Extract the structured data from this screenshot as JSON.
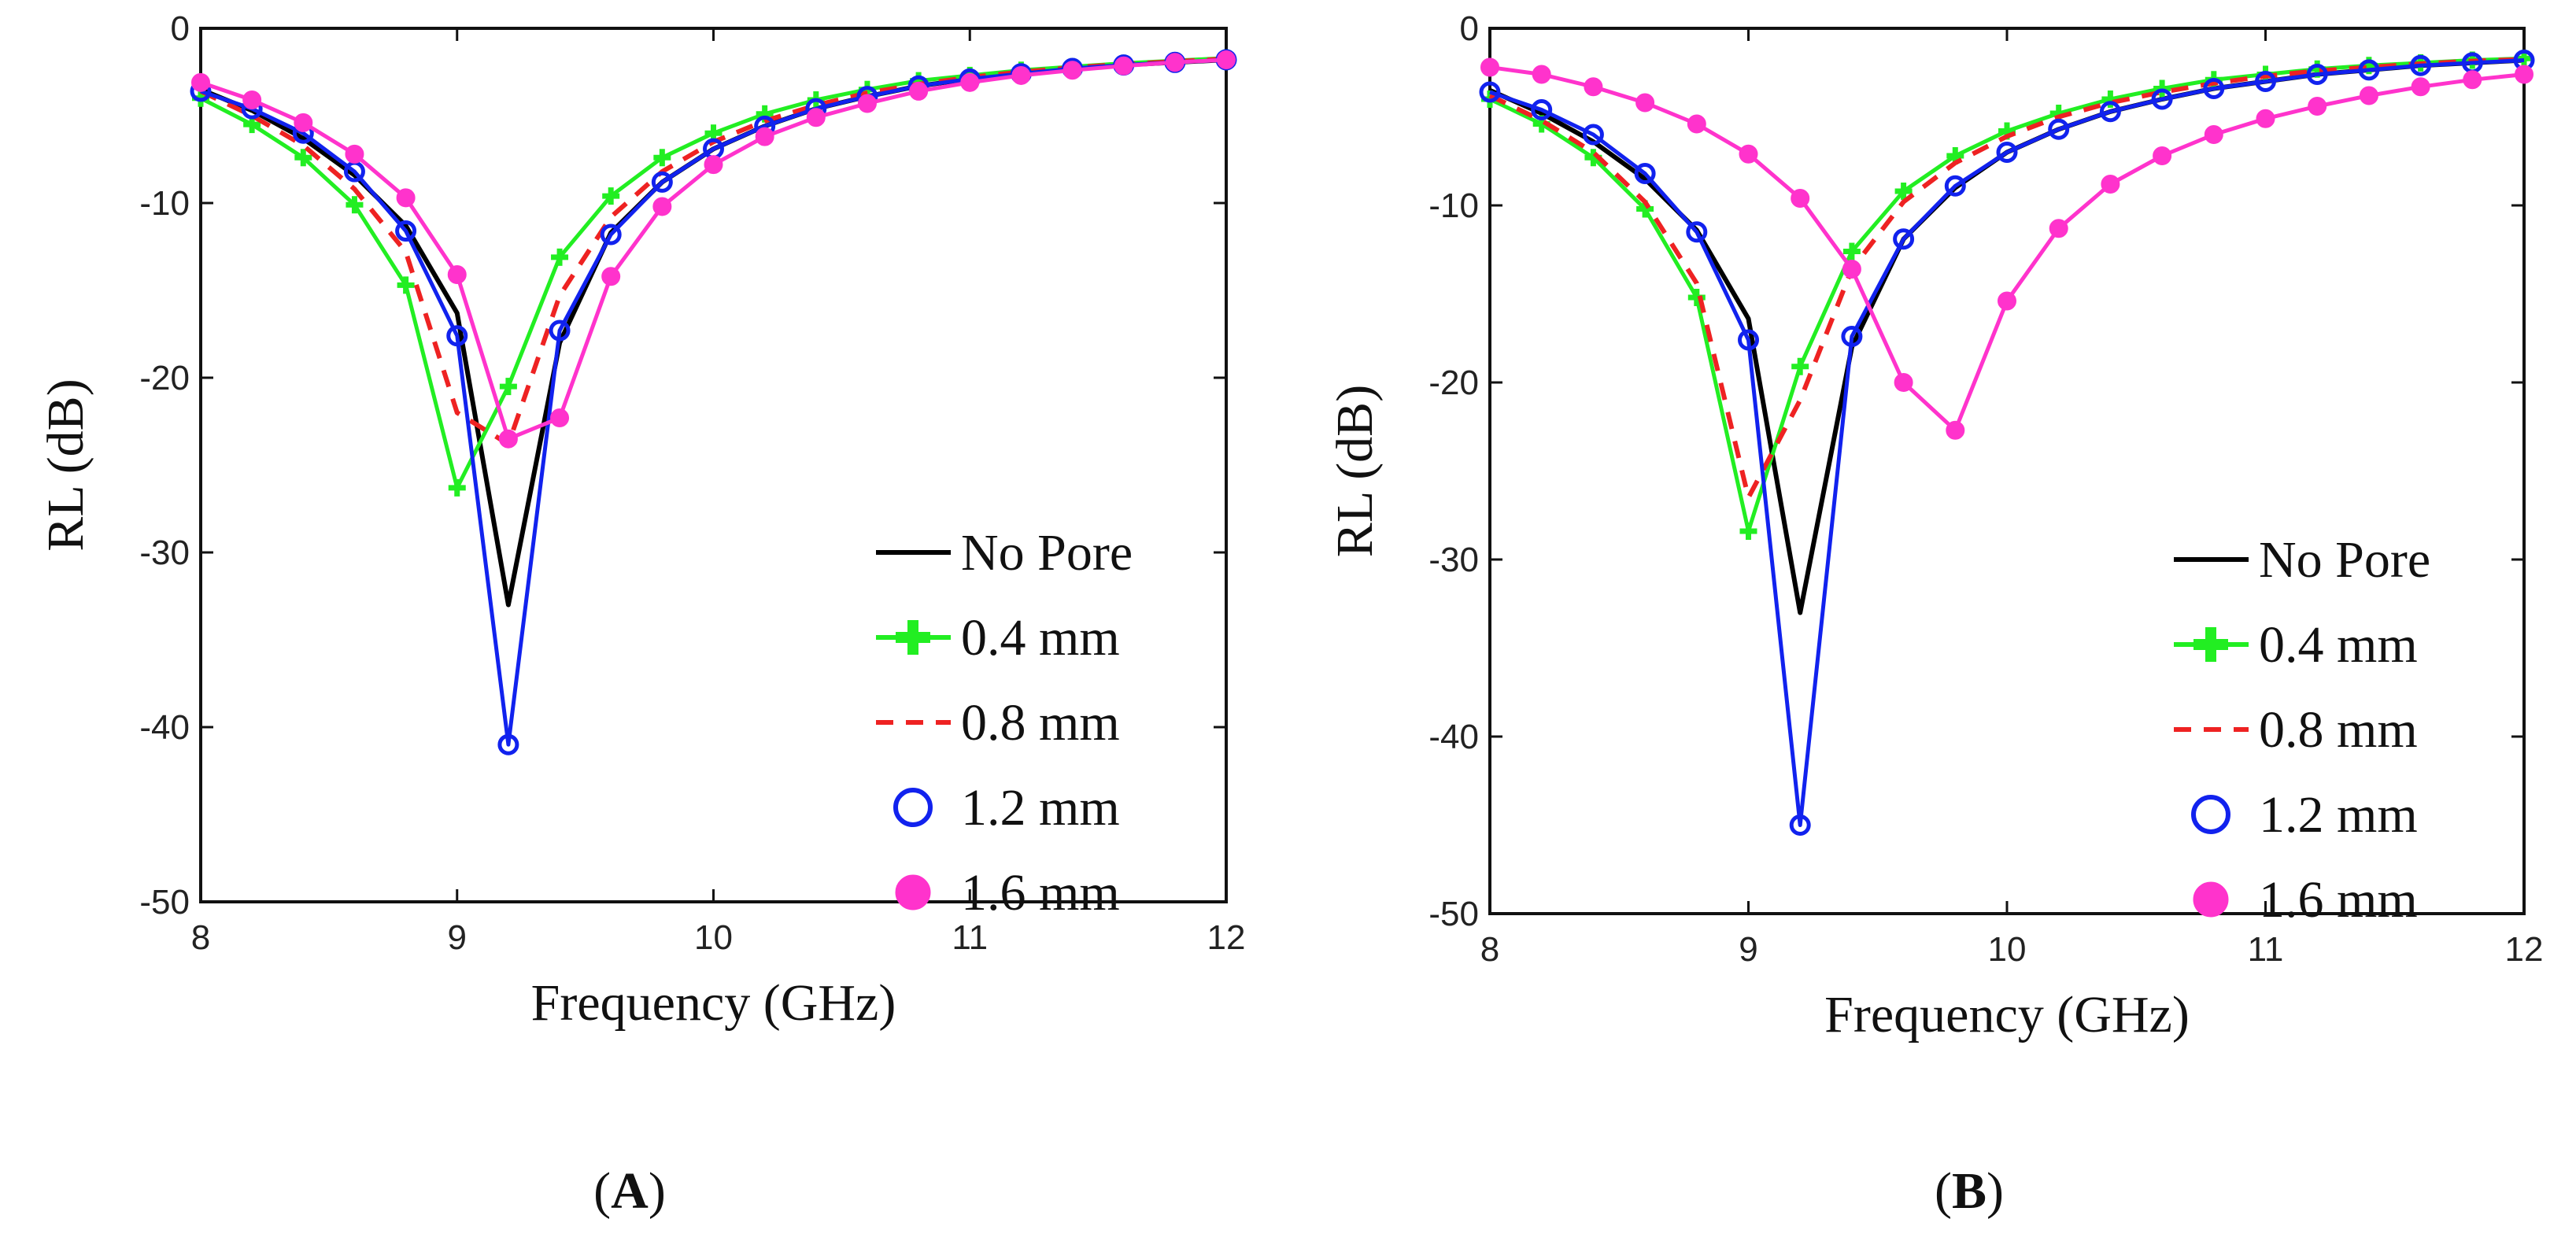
{
  "chart_data": [
    {
      "type": "line",
      "panel_label": "A",
      "xlabel": "Frequency (GHz)",
      "ylabel": "RL (dB)",
      "xlim": [
        8,
        12
      ],
      "ylim": [
        -50,
        0
      ],
      "xticks": [
        8,
        9,
        10,
        11,
        12
      ],
      "yticks": [
        0,
        -10,
        -20,
        -30,
        -40,
        -50
      ],
      "xtick_labels": [
        "8",
        "9",
        "10",
        "11",
        "12"
      ],
      "ytick_labels": [
        "0",
        "-10",
        "-20",
        "-30",
        "-40",
        "-50"
      ],
      "legend_position": "bottom-right",
      "x": [
        8.0,
        8.2,
        8.4,
        8.6,
        8.8,
        9.0,
        9.2,
        9.4,
        9.6,
        9.8,
        10.0,
        10.2,
        10.4,
        10.6,
        10.8,
        11.0,
        11.2,
        11.4,
        11.6,
        11.8,
        12.0
      ],
      "series": [
        {
          "name": "No Pore",
          "color": "#000000",
          "marker": "none",
          "values": [
            -3.5,
            -4.7,
            -6.3,
            -8.4,
            -11.3,
            -16.3,
            -33.0,
            -18.0,
            -11.7,
            -8.8,
            -6.9,
            -5.6,
            -4.6,
            -3.9,
            -3.3,
            -2.9,
            -2.6,
            -2.3,
            -2.1,
            -1.95,
            -1.8
          ]
        },
        {
          "name": "0.4 mm",
          "color": "#22ee22",
          "marker": "plus",
          "values": [
            -4.0,
            -5.5,
            -7.4,
            -10.1,
            -14.7,
            -26.3,
            -20.5,
            -13.1,
            -9.6,
            -7.4,
            -6.0,
            -4.9,
            -4.1,
            -3.5,
            -3.0,
            -2.7,
            -2.4,
            -2.2,
            -2.0,
            -1.85,
            -1.7
          ]
        },
        {
          "name": "0.8 mm",
          "color": "#ee2222",
          "marker": "none",
          "dashed": true,
          "values": [
            -3.6,
            -5.0,
            -6.7,
            -9.2,
            -12.8,
            -22.0,
            -23.8,
            -15.3,
            -10.8,
            -8.2,
            -6.5,
            -5.3,
            -4.4,
            -3.7,
            -3.2,
            -2.8,
            -2.5,
            -2.25,
            -2.05,
            -1.9,
            -1.75
          ]
        },
        {
          "name": "1.2 mm",
          "color": "#1122ee",
          "marker": "circle",
          "values": [
            -3.6,
            -4.6,
            -6.0,
            -8.2,
            -11.6,
            -17.6,
            -41.0,
            -17.3,
            -11.8,
            -8.8,
            -6.9,
            -5.6,
            -4.6,
            -3.9,
            -3.3,
            -2.9,
            -2.6,
            -2.3,
            -2.1,
            -1.95,
            -1.8
          ]
        },
        {
          "name": "1.6 mm",
          "color": "#ff33cc",
          "marker": "dot",
          "values": [
            -3.1,
            -4.1,
            -5.4,
            -7.2,
            -9.7,
            -14.1,
            -23.5,
            -22.3,
            -14.2,
            -10.2,
            -7.8,
            -6.2,
            -5.1,
            -4.3,
            -3.6,
            -3.1,
            -2.7,
            -2.4,
            -2.15,
            -1.95,
            -1.8
          ]
        }
      ]
    },
    {
      "type": "line",
      "panel_label": "B",
      "xlabel": "Frequency (GHz)",
      "ylabel": "RL (dB)",
      "xlim": [
        8,
        12
      ],
      "ylim": [
        -50,
        0
      ],
      "xticks": [
        8,
        9,
        10,
        11,
        12
      ],
      "yticks": [
        0,
        -10,
        -20,
        -30,
        -40,
        -50
      ],
      "xtick_labels": [
        "8",
        "9",
        "10",
        "11",
        "12"
      ],
      "ytick_labels": [
        "0",
        "-10",
        "-20",
        "-30",
        "-40",
        "-50"
      ],
      "legend_position": "bottom-right",
      "x": [
        8.0,
        8.2,
        8.4,
        8.6,
        8.8,
        9.0,
        9.2,
        9.4,
        9.6,
        9.8,
        10.0,
        10.2,
        10.4,
        10.6,
        10.8,
        11.0,
        11.2,
        11.4,
        11.6,
        11.8,
        12.0
      ],
      "series": [
        {
          "name": "No Pore",
          "color": "#000000",
          "marker": "none",
          "values": [
            -3.5,
            -4.8,
            -6.4,
            -8.5,
            -11.4,
            -16.4,
            -33.0,
            -18.0,
            -11.9,
            -9.0,
            -7.0,
            -5.7,
            -4.7,
            -4.0,
            -3.4,
            -3.0,
            -2.6,
            -2.35,
            -2.1,
            -1.95,
            -1.8
          ]
        },
        {
          "name": "0.4 mm",
          "color": "#22ee22",
          "marker": "plus",
          "values": [
            -4.0,
            -5.4,
            -7.3,
            -10.2,
            -15.2,
            -28.4,
            -19.1,
            -12.6,
            -9.2,
            -7.2,
            -5.8,
            -4.8,
            -4.0,
            -3.4,
            -2.9,
            -2.6,
            -2.3,
            -2.1,
            -1.95,
            -1.8,
            -1.7
          ]
        },
        {
          "name": "0.8 mm",
          "color": "#ee2222",
          "marker": "none",
          "dashed": true,
          "values": [
            -3.8,
            -5.2,
            -7.0,
            -9.8,
            -14.4,
            -26.5,
            -21.0,
            -13.6,
            -9.8,
            -7.6,
            -6.1,
            -5.0,
            -4.2,
            -3.6,
            -3.1,
            -2.7,
            -2.4,
            -2.2,
            -2.0,
            -1.85,
            -1.75
          ]
        },
        {
          "name": "1.2 mm",
          "color": "#1122ee",
          "marker": "circle",
          "values": [
            -3.6,
            -4.6,
            -6.0,
            -8.2,
            -11.5,
            -17.6,
            -45.0,
            -17.4,
            -11.9,
            -8.9,
            -7.0,
            -5.7,
            -4.7,
            -4.0,
            -3.4,
            -3.0,
            -2.6,
            -2.35,
            -2.1,
            -1.95,
            -1.8
          ]
        },
        {
          "name": "1.6 mm",
          "color": "#ff33cc",
          "marker": "dot",
          "values": [
            -2.2,
            -2.6,
            -3.3,
            -4.2,
            -5.4,
            -7.1,
            -9.6,
            -13.6,
            -20.0,
            -22.7,
            -15.4,
            -11.3,
            -8.8,
            -7.2,
            -6.0,
            -5.1,
            -4.4,
            -3.8,
            -3.3,
            -2.9,
            -2.6
          ]
        }
      ]
    }
  ]
}
